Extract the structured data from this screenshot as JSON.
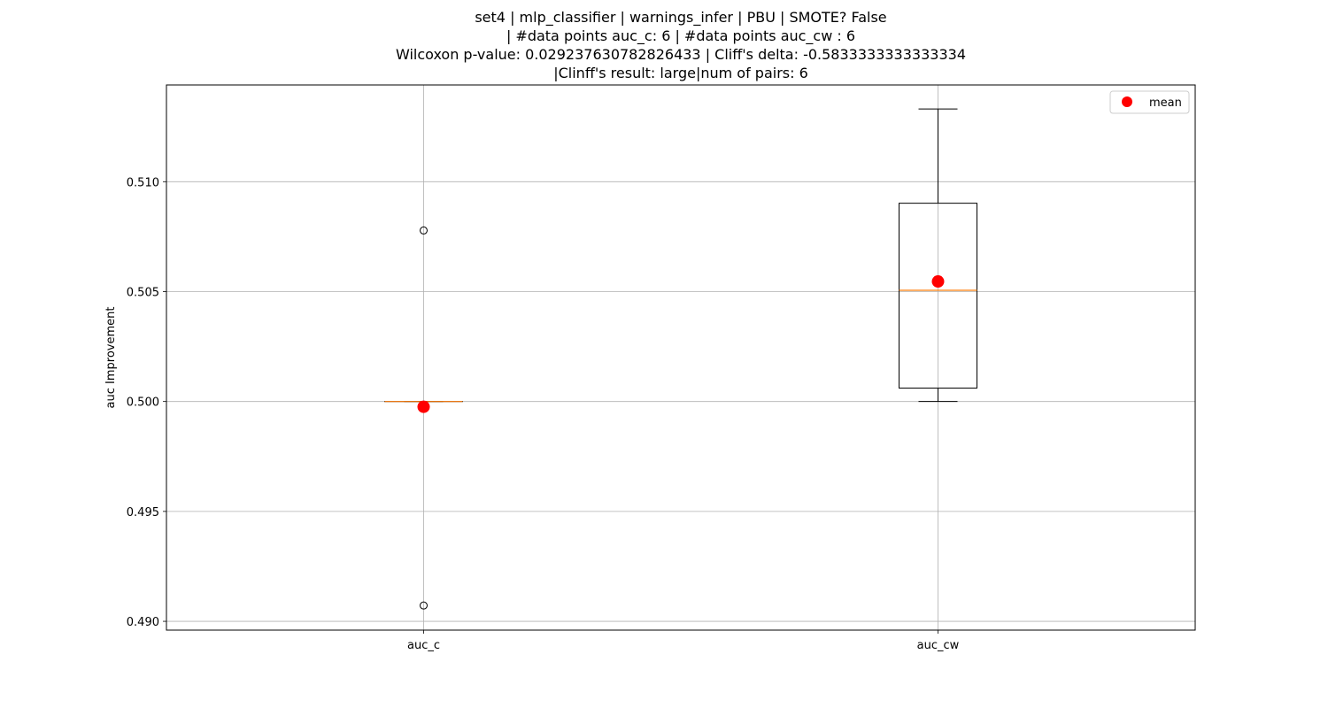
{
  "chart_data": {
    "type": "box",
    "title_lines": [
      "set4 | mlp_classifier | warnings_infer | PBU | SMOTE? False",
      "| #data points auc_c: 6 | #data points auc_cw : 6",
      "Wilcoxon p-value: 0.029237630782826433 | Cliff's delta: -0.5833333333333334",
      "|Clinff's result: large|num of pairs: 6"
    ],
    "xlabel": "",
    "ylabel": "auc Improvement",
    "ylim": [
      0.4896,
      0.5144
    ],
    "yticks": [
      0.49,
      0.495,
      0.5,
      0.505,
      0.51
    ],
    "ytick_labels": [
      "0.490",
      "0.495",
      "0.500",
      "0.505",
      "0.510"
    ],
    "grid": true,
    "legend": {
      "placement": "top-right",
      "entries": [
        "mean"
      ]
    },
    "colors": {
      "mean": "#ff0000",
      "median": "#ff7f0e",
      "box": "#000000",
      "grid": "#b0b0b0"
    },
    "categories": [
      "auc_c",
      "auc_cw"
    ],
    "boxes": [
      {
        "name": "auc_c",
        "whislo": 0.5,
        "q1": 0.5,
        "med": 0.5,
        "q3": 0.5,
        "whishi": 0.5,
        "fliers": [
          0.50778,
          0.49072
        ],
        "mean": 0.49976
      },
      {
        "name": "auc_cw",
        "whislo": 0.5,
        "q1": 0.50061,
        "med": 0.50506,
        "q3": 0.50902,
        "whishi": 0.51331,
        "fliers": [],
        "mean": 0.50546
      }
    ]
  }
}
